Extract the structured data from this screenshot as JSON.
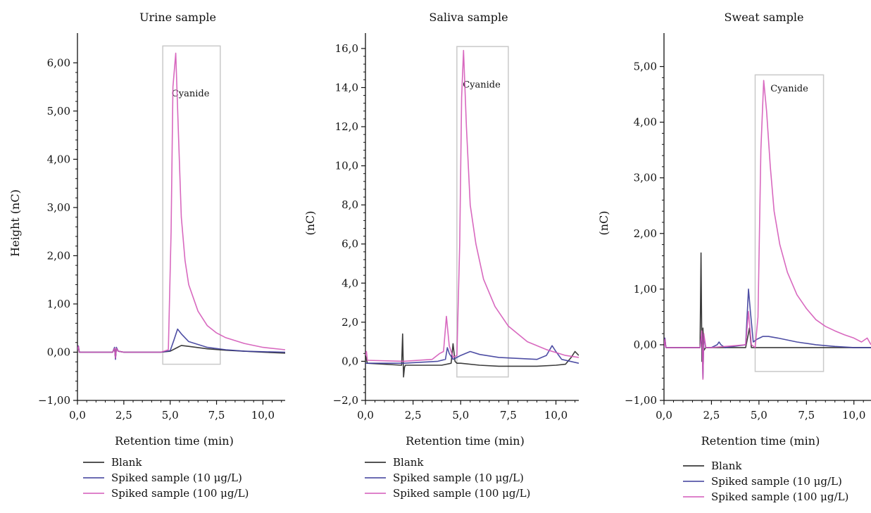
{
  "legend": {
    "items": [
      {
        "label": "Blank",
        "color": "#1a1a1a"
      },
      {
        "label": "Spiked sample (10 μg/L)",
        "color": "#3b3b9a"
      },
      {
        "label": "Spiked sample (100 μg/L)",
        "color": "#d459b8"
      }
    ]
  },
  "chart_data": [
    {
      "type": "line",
      "title": "Urine sample",
      "xlabel": "Retention time (min)",
      "ylabel": "Height (nC)",
      "xlim": [
        0,
        11.2
      ],
      "ylim": [
        -1.0,
        6.5
      ],
      "xticks": [
        0,
        2.5,
        5.0,
        7.5,
        10.0
      ],
      "xtick_labels": [
        "0,0",
        "2,5",
        "5,0",
        "7,5",
        "10,0"
      ],
      "yticks": [
        -1.0,
        0.0,
        1.0,
        2.0,
        3.0,
        4.0,
        5.0,
        6.0
      ],
      "ytick_labels": [
        "−1,00",
        "0,00",
        "1,00",
        "2,00",
        "3,00",
        "4,00",
        "5,00",
        "6,00"
      ],
      "annotation": {
        "label": "Cyanide",
        "x0": 4.6,
        "x1": 7.7,
        "y0": -0.25,
        "y1": 6.35,
        "label_x": 6.1,
        "label_y": 5.3
      },
      "series": [
        {
          "name": "Blank",
          "x": [
            0,
            0.05,
            0.1,
            1.9,
            2.0,
            2.05,
            2.1,
            2.2,
            2.5,
            4.5,
            5.0,
            5.3,
            5.6,
            6.0,
            7.0,
            8.0,
            9.0,
            10.0,
            11.2
          ],
          "y": [
            0.05,
            0.12,
            0.0,
            0.0,
            0.08,
            -0.12,
            0.08,
            0.02,
            0.0,
            0.0,
            0.02,
            0.08,
            0.14,
            0.12,
            0.07,
            0.04,
            0.02,
            0.0,
            -0.02
          ]
        },
        {
          "name": "Spiked sample (10 μg/L)",
          "x": [
            0,
            0.05,
            0.1,
            1.9,
            2.0,
            2.05,
            2.1,
            2.2,
            2.5,
            4.5,
            5.0,
            5.2,
            5.4,
            5.6,
            6.0,
            7.0,
            8.0,
            9.0,
            10.0,
            11.2
          ],
          "y": [
            0.05,
            0.13,
            0.0,
            0.0,
            0.1,
            -0.15,
            0.1,
            0.02,
            0.0,
            0.0,
            0.03,
            0.25,
            0.48,
            0.38,
            0.22,
            0.1,
            0.05,
            0.02,
            0.01,
            0.0
          ]
        },
        {
          "name": "Spiked sample (100 μg/L)",
          "x": [
            0,
            0.05,
            0.1,
            1.9,
            2.0,
            2.05,
            2.1,
            2.2,
            2.5,
            4.5,
            4.9,
            5.05,
            5.15,
            5.3,
            5.45,
            5.6,
            5.8,
            6.0,
            6.5,
            7.0,
            7.5,
            8.0,
            9.0,
            10.0,
            11.2
          ],
          "y": [
            0.05,
            0.12,
            0.0,
            0.0,
            0.08,
            -0.12,
            0.08,
            0.02,
            0.0,
            0.0,
            0.05,
            2.5,
            5.5,
            6.2,
            4.5,
            2.8,
            1.9,
            1.4,
            0.85,
            0.55,
            0.4,
            0.3,
            0.18,
            0.1,
            0.05
          ]
        }
      ]
    },
    {
      "type": "line",
      "title": "Saliva sample",
      "xlabel": "Retention time (min)",
      "ylabel": "(nC)",
      "xlim": [
        0,
        11.2
      ],
      "ylim": [
        -2.0,
        16.5
      ],
      "xticks": [
        0,
        2.5,
        5.0,
        7.5,
        10.0
      ],
      "xtick_labels": [
        "0,0",
        "2,5",
        "5,0",
        "7,5",
        "10,0"
      ],
      "yticks": [
        -2.0,
        0.0,
        2.0,
        4.0,
        6.0,
        8.0,
        10.0,
        12.0,
        14.0,
        16.0
      ],
      "ytick_labels": [
        "−2,0",
        "0,0",
        "2,0",
        "4,0",
        "6,0",
        "8,0",
        "10,0",
        "12,0",
        "14,0",
        "16,0"
      ],
      "annotation": {
        "label": "Cyanide",
        "x0": 4.8,
        "x1": 7.5,
        "y0": -0.8,
        "y1": 16.1,
        "label_x": 6.1,
        "label_y": 14.0
      },
      "series": [
        {
          "name": "Blank",
          "x": [
            0,
            0.05,
            0.1,
            1.9,
            1.95,
            2.0,
            2.05,
            2.1,
            2.2,
            2.5,
            4.0,
            4.5,
            4.6,
            4.7,
            4.8,
            5.0,
            6.0,
            7.0,
            8.0,
            9.0,
            10.0,
            10.5,
            10.8,
            11.0,
            11.2
          ],
          "y": [
            0.3,
            0.1,
            -0.1,
            -0.2,
            1.4,
            -0.8,
            -0.3,
            -0.2,
            -0.2,
            -0.2,
            -0.2,
            -0.1,
            0.9,
            0.0,
            -0.1,
            -0.1,
            -0.2,
            -0.25,
            -0.25,
            -0.25,
            -0.2,
            -0.15,
            0.2,
            0.5,
            0.3
          ]
        },
        {
          "name": "Spiked sample (10 μg/L)",
          "x": [
            0,
            0.1,
            2.0,
            3.8,
            4.2,
            4.3,
            4.4,
            4.6,
            4.8,
            5.0,
            5.5,
            6.0,
            7.0,
            8.0,
            9.0,
            9.5,
            9.8,
            10.0,
            10.3,
            11.2
          ],
          "y": [
            -0.1,
            -0.1,
            -0.1,
            0.0,
            0.1,
            0.7,
            0.4,
            0.1,
            0.2,
            0.3,
            0.5,
            0.35,
            0.2,
            0.15,
            0.1,
            0.3,
            0.8,
            0.5,
            0.1,
            -0.1
          ]
        },
        {
          "name": "Spiked sample (100 μg/L)",
          "x": [
            0,
            0.05,
            0.1,
            2.0,
            3.5,
            3.9,
            4.1,
            4.25,
            4.4,
            4.6,
            4.8,
            4.95,
            5.05,
            5.15,
            5.3,
            5.5,
            5.8,
            6.2,
            6.8,
            7.5,
            8.5,
            9.5,
            10.5,
            11.2
          ],
          "y": [
            0.3,
            0.5,
            0.05,
            0.0,
            0.1,
            0.4,
            0.5,
            2.3,
            0.8,
            0.2,
            0.3,
            6.0,
            13.5,
            15.9,
            12.0,
            8.0,
            6.0,
            4.2,
            2.8,
            1.8,
            1.0,
            0.6,
            0.3,
            0.2
          ]
        }
      ]
    },
    {
      "type": "line",
      "title": "Sweat sample",
      "xlabel": "Retention time (min)",
      "ylabel": "(nC)",
      "xlim": [
        0,
        10.9
      ],
      "ylim": [
        -1.0,
        5.5
      ],
      "xticks": [
        0,
        2.5,
        5.0,
        7.5,
        10.0
      ],
      "xtick_labels": [
        "0,0",
        "2,5",
        "5,0",
        "7,5",
        "10,0"
      ],
      "yticks": [
        -1.0,
        0.0,
        1.0,
        2.0,
        3.0,
        4.0,
        5.0
      ],
      "ytick_labels": [
        "−1,00",
        "0,00",
        "1,00",
        "2,00",
        "3,00",
        "4,00",
        "5,00"
      ],
      "annotation": {
        "label": "Cyanide",
        "x0": 4.8,
        "x1": 8.4,
        "y0": -0.48,
        "y1": 4.85,
        "label_x": 6.6,
        "label_y": 4.55
      },
      "series": [
        {
          "name": "Blank",
          "x": [
            0,
            0.05,
            0.1,
            1.9,
            1.95,
            2.0,
            2.05,
            2.1,
            2.2,
            2.5,
            4.3,
            4.5,
            4.6,
            4.8,
            5.0,
            6.0,
            8.0,
            10.0,
            10.9
          ],
          "y": [
            -0.05,
            0.1,
            -0.05,
            -0.05,
            1.65,
            -0.3,
            0.3,
            -0.1,
            -0.05,
            -0.05,
            -0.05,
            0.3,
            -0.05,
            -0.05,
            -0.05,
            -0.05,
            -0.05,
            -0.05,
            -0.05
          ]
        },
        {
          "name": "Spiked sample (10 μg/L)",
          "x": [
            0,
            0.05,
            0.1,
            1.9,
            2.0,
            2.05,
            2.1,
            2.2,
            2.5,
            2.8,
            2.9,
            3.0,
            3.2,
            4.3,
            4.45,
            4.55,
            4.7,
            4.9,
            5.2,
            5.5,
            6.0,
            7.0,
            8.0,
            9.0,
            10.0,
            10.5,
            10.9
          ],
          "y": [
            -0.05,
            0.12,
            -0.05,
            -0.05,
            0.2,
            -0.6,
            0.15,
            -0.05,
            -0.05,
            0.0,
            0.05,
            0.0,
            -0.05,
            0.0,
            1.0,
            0.6,
            0.05,
            0.1,
            0.15,
            0.15,
            0.12,
            0.05,
            0.0,
            -0.03,
            -0.05,
            -0.05,
            -0.05
          ]
        },
        {
          "name": "Spiked sample (100 μg/L)",
          "x": [
            0,
            0.05,
            0.1,
            1.9,
            2.0,
            2.05,
            2.1,
            2.2,
            2.5,
            4.3,
            4.45,
            4.6,
            4.8,
            4.95,
            5.1,
            5.25,
            5.4,
            5.6,
            5.8,
            6.1,
            6.5,
            7.0,
            7.5,
            8.0,
            8.5,
            9.0,
            9.5,
            10.0,
            10.4,
            10.7,
            10.9
          ],
          "y": [
            -0.05,
            0.1,
            -0.05,
            -0.05,
            0.25,
            -0.62,
            0.2,
            -0.05,
            -0.05,
            0.0,
            0.6,
            0.0,
            -0.05,
            0.5,
            3.5,
            4.75,
            4.2,
            3.2,
            2.4,
            1.8,
            1.3,
            0.9,
            0.65,
            0.45,
            0.33,
            0.25,
            0.18,
            0.12,
            0.05,
            0.12,
            0.0
          ]
        }
      ]
    }
  ]
}
